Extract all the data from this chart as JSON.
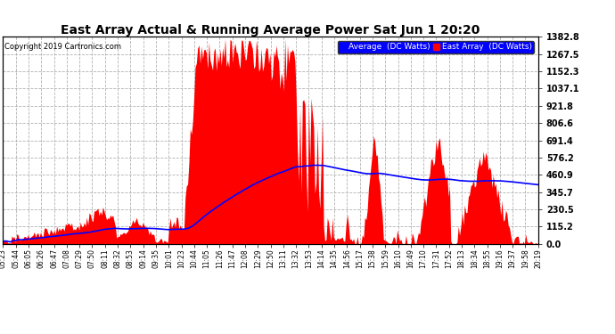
{
  "title": "East Array Actual & Running Average Power Sat Jun 1 20:20",
  "copyright": "Copyright 2019 Cartronics.com",
  "legend_labels": [
    "Average  (DC Watts)",
    "East Array  (DC Watts)"
  ],
  "ylabel_right_ticks": [
    0.0,
    115.2,
    230.5,
    345.7,
    460.9,
    576.2,
    691.4,
    806.6,
    921.8,
    1037.1,
    1152.3,
    1267.5,
    1382.8
  ],
  "ymax": 1382.8,
  "ymin": 0.0,
  "bg_color": "#ffffff",
  "plot_bg_color": "#ffffff",
  "grid_color": "#aaaaaa",
  "bar_color": "#ff0000",
  "line_color": "#0000ff",
  "title_color": "#000000",
  "tick_color": "#000000",
  "x_labels": [
    "05:23",
    "05:44",
    "06:05",
    "06:26",
    "06:47",
    "07:08",
    "07:29",
    "07:50",
    "08:11",
    "08:32",
    "08:53",
    "09:14",
    "09:35",
    "10:01",
    "10:23",
    "10:44",
    "11:05",
    "11:26",
    "11:47",
    "12:08",
    "12:29",
    "12:50",
    "13:11",
    "13:32",
    "13:53",
    "14:14",
    "14:35",
    "14:56",
    "15:17",
    "15:38",
    "15:59",
    "16:10",
    "16:49",
    "17:10",
    "17:31",
    "17:52",
    "18:13",
    "18:34",
    "18:55",
    "19:16",
    "19:37",
    "19:58",
    "20:19"
  ],
  "n_points": 430
}
